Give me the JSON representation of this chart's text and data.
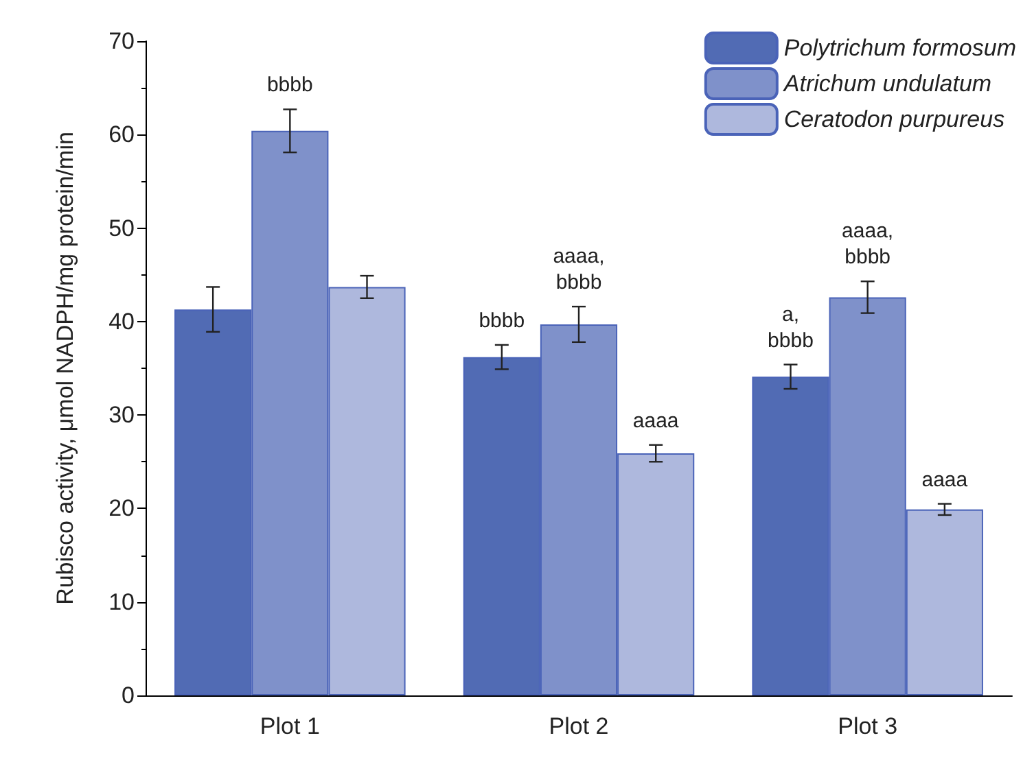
{
  "chart_data": {
    "type": "bar",
    "ylabel": "Rubisco activity, μmol NADPH/mg protein/min",
    "categories": [
      "Plot 1",
      "Plot 2",
      "Plot 3"
    ],
    "series": [
      {
        "name": "Polytrichum formosum",
        "color": "#516bb4",
        "values": [
          41.3,
          36.2,
          34.1
        ],
        "errors": [
          2.4,
          1.3,
          1.3
        ],
        "value_labels": [
          null,
          "bbbb",
          "a,\nbbbb"
        ]
      },
      {
        "name": "Atrichum undulatum",
        "color": "#7f91ca",
        "values": [
          60.4,
          39.7,
          42.6
        ],
        "errors": [
          2.3,
          1.9,
          1.7
        ],
        "value_labels": [
          "bbbb",
          "aaaa,\nbbbb",
          "aaaa,\nbbbb"
        ]
      },
      {
        "name": "Ceratodon purpureus",
        "color": "#aeb8dd",
        "values": [
          43.7,
          25.9,
          19.9
        ],
        "errors": [
          1.2,
          0.9,
          0.6
        ],
        "value_labels": [
          null,
          "aaaa",
          "aaaa"
        ]
      }
    ],
    "ylim": [
      0,
      70
    ],
    "yticks": [
      0,
      10,
      20,
      30,
      40,
      50,
      60,
      70
    ],
    "grid": false,
    "legend": "top right"
  }
}
